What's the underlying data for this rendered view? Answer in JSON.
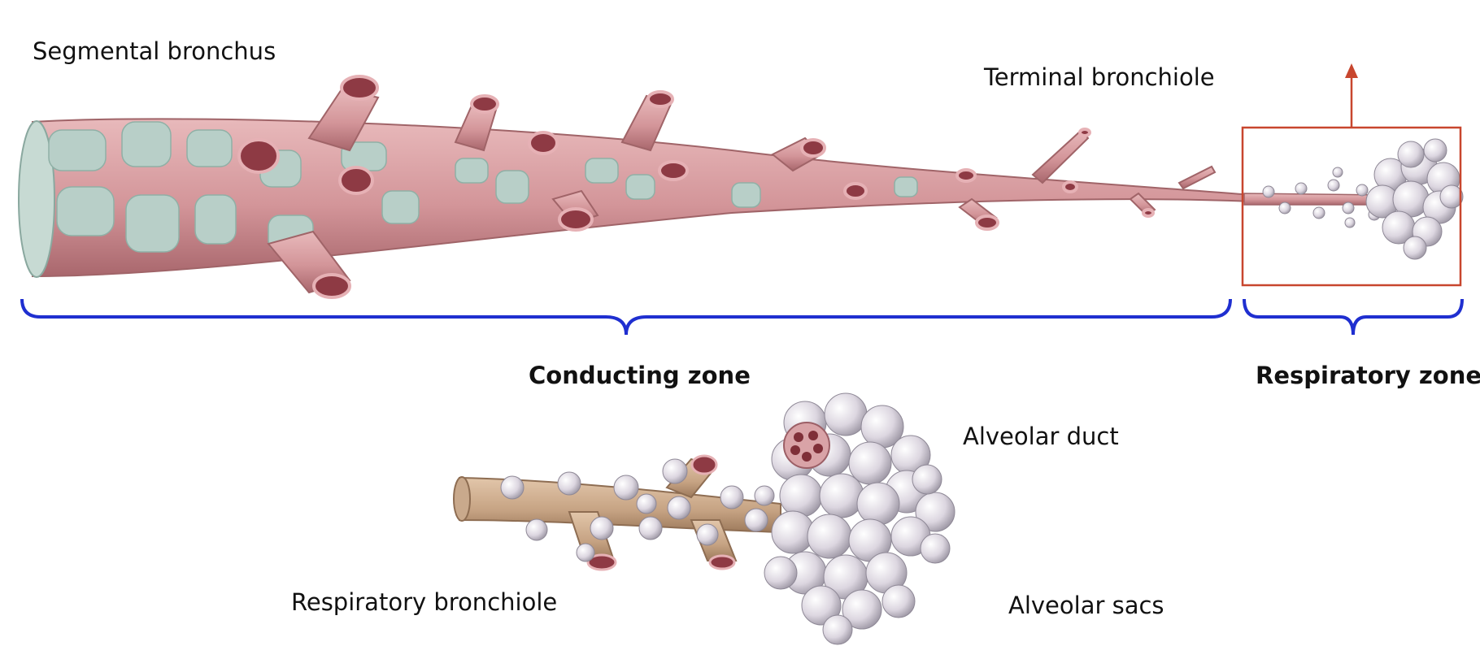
{
  "labels": {
    "segmental_bronchus": "Segmental bronchus",
    "terminal_bronchiole": "Terminal bronchiole",
    "conducting_zone": "Conducting zone",
    "respiratory_zone": "Respiratory zone",
    "alveolar_duct": "Alveolar duct",
    "respiratory_bronchiole": "Respiratory bronchiole",
    "alveolar_sacs": "Alveolar sacs"
  },
  "colors": {
    "bracket": "#1f2fd0",
    "highlight_box": "#c8462e",
    "airway_pink": "#d49b9f",
    "cartilage": "#b8cfc8",
    "alveoli": "#e6e1ea",
    "resp_bronchiole": "#c9a98c"
  }
}
